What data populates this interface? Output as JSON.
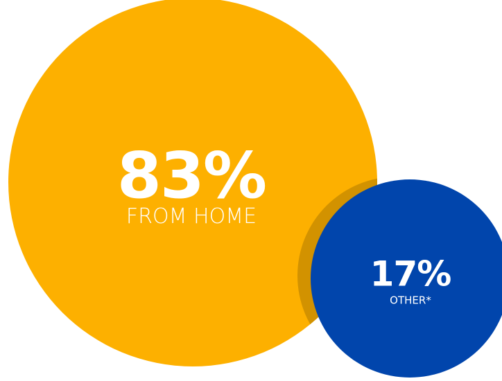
{
  "chart_data": {
    "type": "bubble",
    "series": [
      {
        "name": "FROM HOME",
        "value": 83,
        "display": "83%",
        "color": "#FDB000"
      },
      {
        "name": "OTHER*",
        "value": 17,
        "display": "17%",
        "color": "#0145AC"
      }
    ],
    "overlap_shadow_color": "#D29200"
  }
}
